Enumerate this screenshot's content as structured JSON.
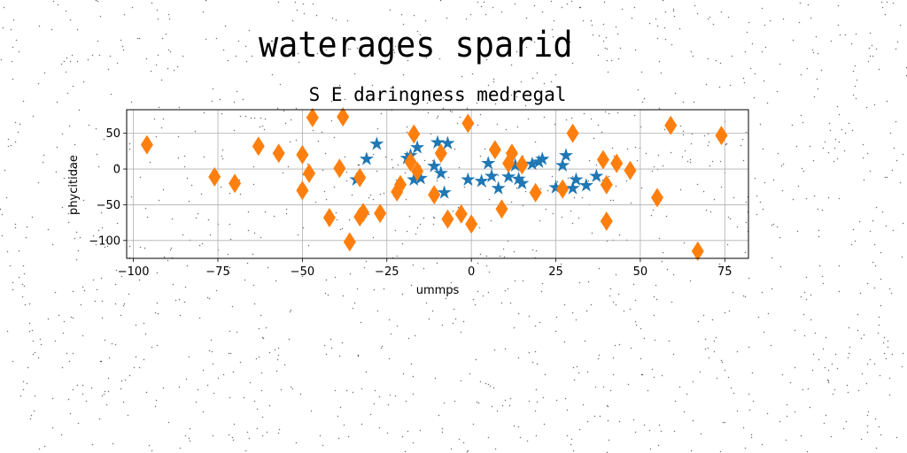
{
  "suptitle": "waterages sparid",
  "chart_data": {
    "type": "scatter",
    "title": "S E daringness medregal",
    "xlabel": "ummps",
    "ylabel": "phycitidae",
    "xlim": [
      -102,
      82
    ],
    "ylim": [
      -125,
      83
    ],
    "grid": true,
    "legend": "none",
    "xticks": [
      -100,
      -75,
      -50,
      -25,
      0,
      25,
      50,
      75
    ],
    "yticks": [
      -100,
      -50,
      0,
      50
    ],
    "xtick_labels": [
      "−100",
      "−75",
      "−50",
      "−25",
      "0",
      "25",
      "50",
      "75"
    ],
    "ytick_labels": [
      "−100",
      "−50",
      "0",
      "50"
    ],
    "series": [
      {
        "marker": "star",
        "color": "#1f77b4",
        "points": [
          [
            -34,
            -15
          ],
          [
            -31,
            14
          ],
          [
            -28,
            35
          ],
          [
            -19,
            15
          ],
          [
            -18,
            19
          ],
          [
            -17,
            -15
          ],
          [
            -16,
            30
          ],
          [
            -15,
            -13
          ],
          [
            -11,
            4
          ],
          [
            -10,
            37
          ],
          [
            -9,
            -6
          ],
          [
            -8,
            -33
          ],
          [
            -7,
            36
          ],
          [
            -1,
            -15
          ],
          [
            3,
            -17
          ],
          [
            5,
            8
          ],
          [
            6,
            -10
          ],
          [
            8,
            -27
          ],
          [
            11,
            -11
          ],
          [
            13,
            5
          ],
          [
            14,
            -14
          ],
          [
            15,
            -20
          ],
          [
            18,
            7
          ],
          [
            20,
            10
          ],
          [
            21,
            14
          ],
          [
            25,
            -26
          ],
          [
            27,
            5
          ],
          [
            28,
            19
          ],
          [
            30,
            -27
          ],
          [
            31,
            -15
          ],
          [
            34,
            -23
          ],
          [
            37,
            -10
          ]
        ]
      },
      {
        "marker": "thin_diamond",
        "color": "#ff7f0e",
        "points": [
          [
            -96,
            34
          ],
          [
            -76,
            -11
          ],
          [
            -70,
            -20
          ],
          [
            -63,
            32
          ],
          [
            -57,
            22
          ],
          [
            -50,
            20
          ],
          [
            -50,
            -30
          ],
          [
            -48,
            -6
          ],
          [
            -47,
            72
          ],
          [
            -42,
            -68
          ],
          [
            -39,
            1
          ],
          [
            -38,
            73
          ],
          [
            -36,
            -102
          ],
          [
            -33,
            -12
          ],
          [
            -33,
            -67
          ],
          [
            -32,
            -61
          ],
          [
            -27,
            -62
          ],
          [
            -22,
            -32
          ],
          [
            -21,
            -22
          ],
          [
            -18,
            10
          ],
          [
            -17,
            49
          ],
          [
            -16,
            -3
          ],
          [
            -11,
            -36
          ],
          [
            -9,
            22
          ],
          [
            -7,
            -70
          ],
          [
            -3,
            -63
          ],
          [
            -1,
            64
          ],
          [
            0,
            -77
          ],
          [
            7,
            27
          ],
          [
            9,
            -56
          ],
          [
            11,
            8
          ],
          [
            12,
            22
          ],
          [
            15,
            6
          ],
          [
            19,
            -33
          ],
          [
            27,
            -28
          ],
          [
            30,
            50
          ],
          [
            39,
            13
          ],
          [
            40,
            -22
          ],
          [
            40,
            -73
          ],
          [
            43,
            8
          ],
          [
            47,
            -2
          ],
          [
            55,
            -40
          ],
          [
            59,
            61
          ],
          [
            67,
            -115
          ],
          [
            74,
            47
          ]
        ]
      }
    ]
  }
}
